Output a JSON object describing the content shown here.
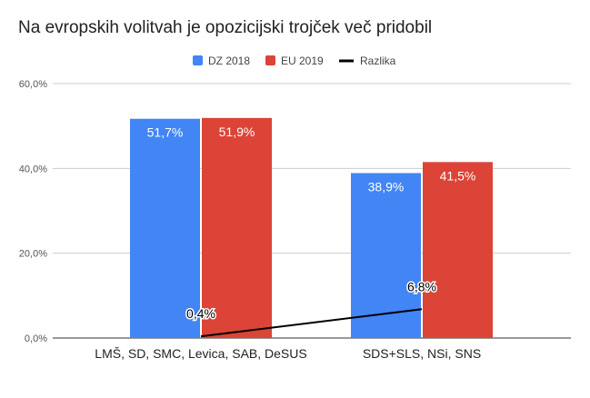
{
  "chart_data": {
    "type": "bar",
    "title": "Na evropskih volitvah je opozicijski trojček več pridobil",
    "categories": [
      "LMŠ, SD, SMC, Levica, SAB, DeSUS",
      "SDS+SLS, NSi, SNS"
    ],
    "series": [
      {
        "name": "DZ 2018",
        "type": "bar",
        "color": "#4285f4",
        "values": [
          51.7,
          38.9
        ],
        "labels": [
          "51,7%",
          "38,9%"
        ]
      },
      {
        "name": "EU 2019",
        "type": "bar",
        "color": "#db4437",
        "values": [
          51.9,
          41.5
        ],
        "labels": [
          "51,9%",
          "41,5%"
        ]
      },
      {
        "name": "Razlika",
        "type": "line",
        "color": "#000000",
        "values": [
          0.4,
          6.8
        ],
        "labels": [
          "0,4%",
          "6,8%"
        ]
      }
    ],
    "ylim": [
      0,
      60
    ],
    "yticks": [
      0,
      20,
      40,
      60
    ],
    "ytick_labels": [
      "0,0%",
      "20,0%",
      "40,0%",
      "60,0%"
    ],
    "xlabel": "",
    "ylabel": "",
    "grid": true,
    "legend": "top-center"
  }
}
